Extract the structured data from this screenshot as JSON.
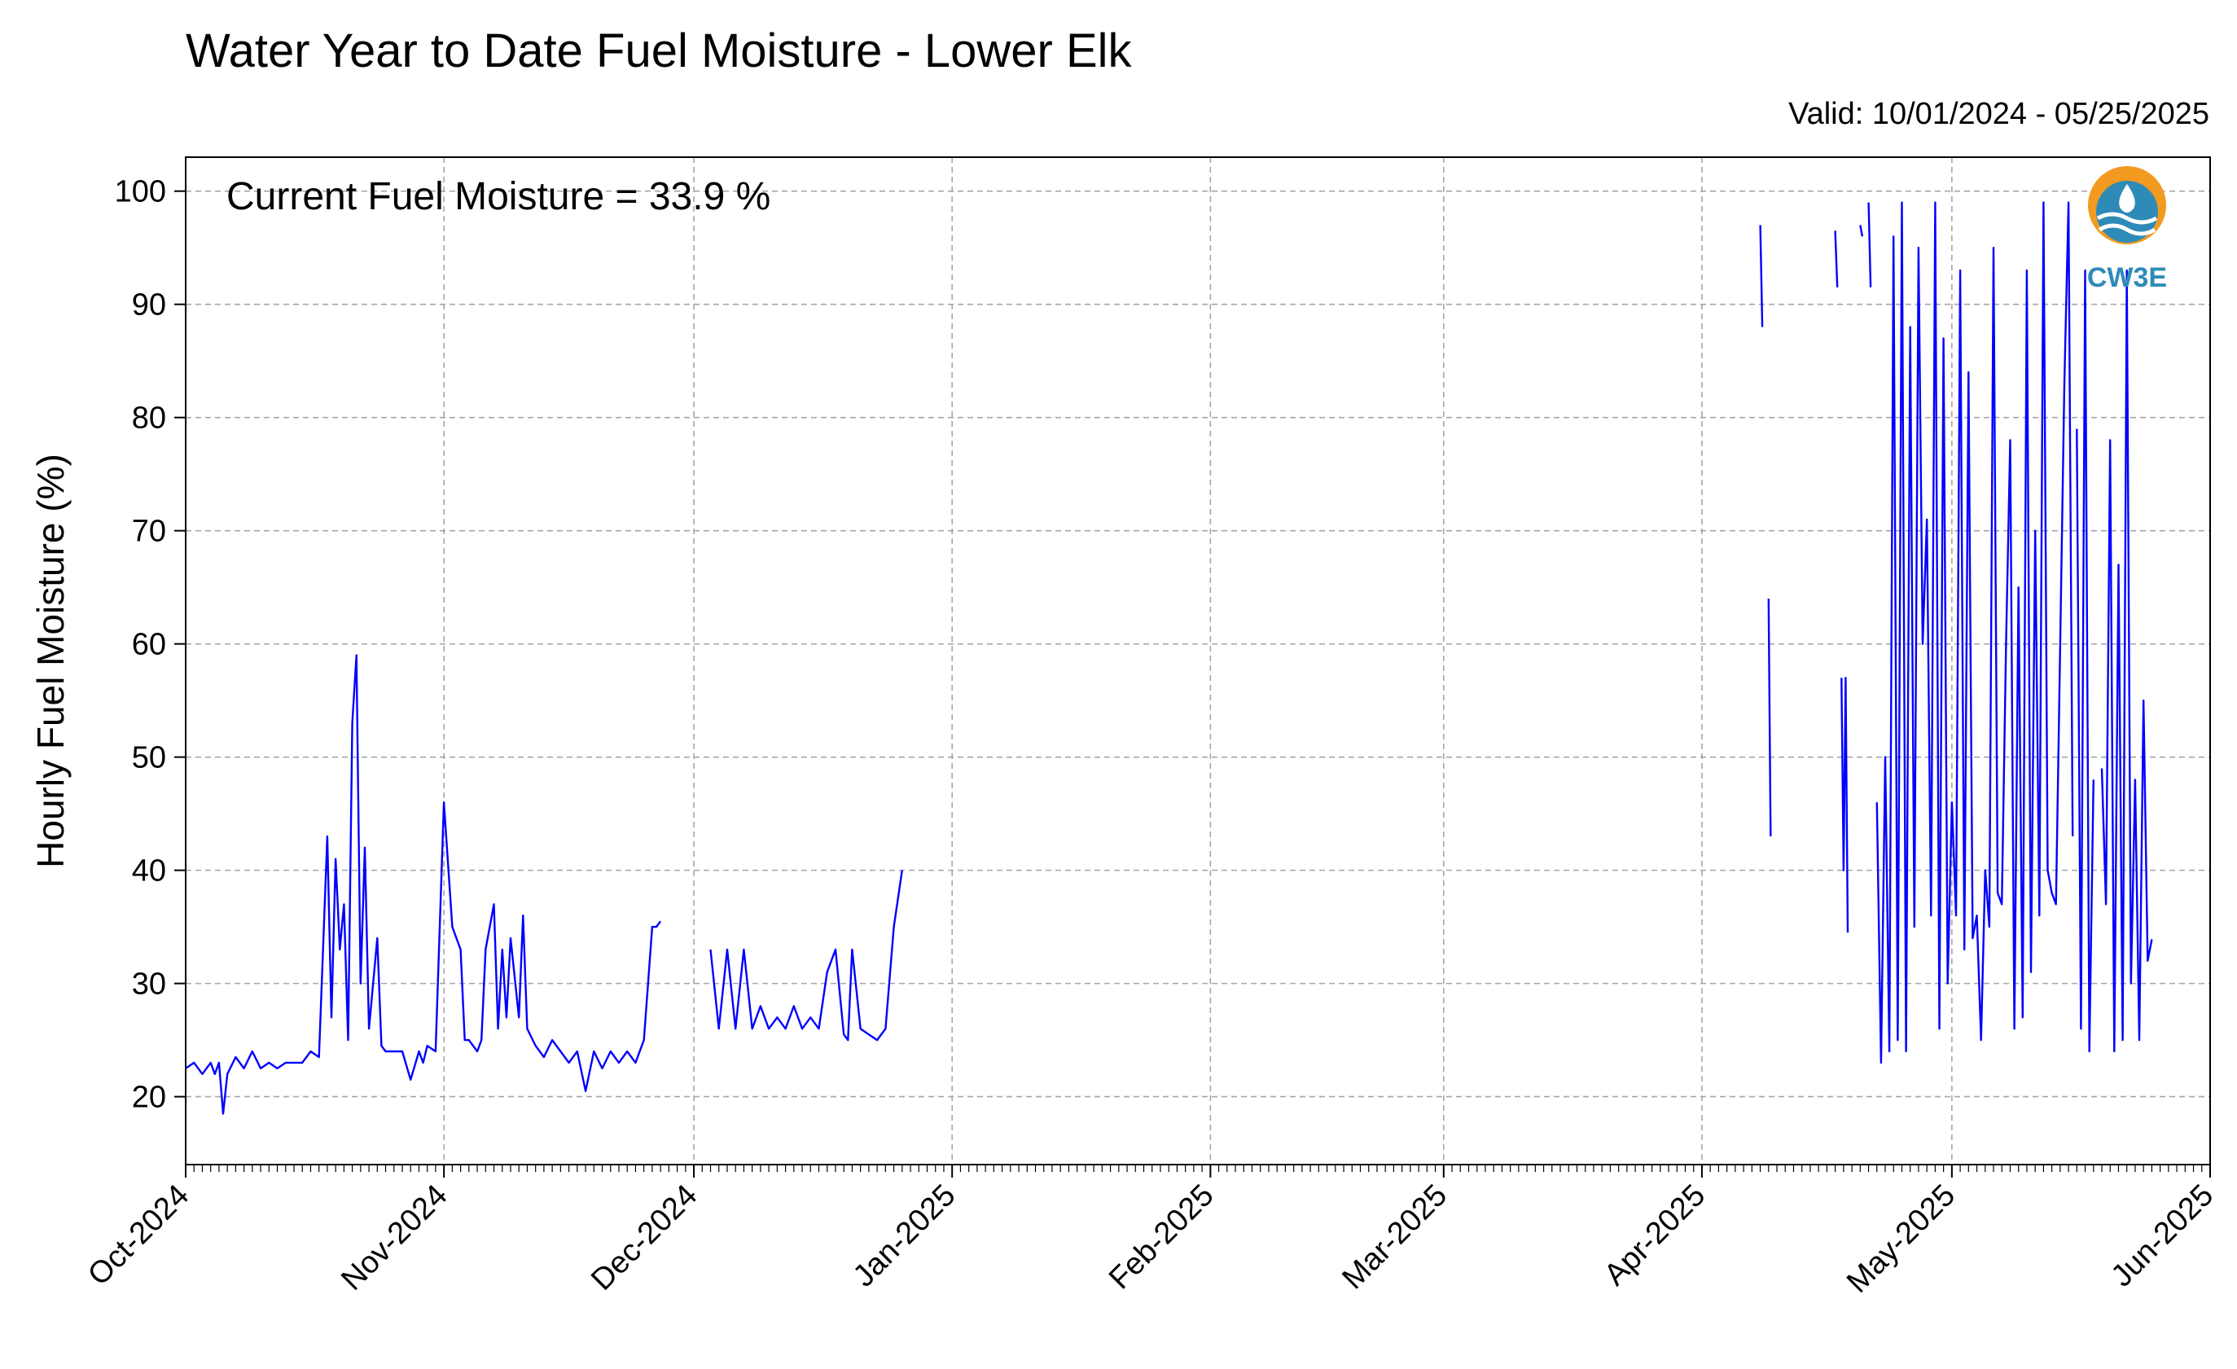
{
  "chart_data": {
    "type": "line",
    "title": "Water Year to Date Fuel Moisture - Lower Elk",
    "valid_range": "Valid: 10/01/2024 - 05/25/2025",
    "ylabel": "Hourly Fuel Moisture (%)",
    "xlabel": "",
    "annotation": "Current Fuel Moisture = 33.9 %",
    "logo_text": "CW3E",
    "xlim": [
      "2024-10-01",
      "2025-06-01"
    ],
    "ylim": [
      14,
      103
    ],
    "x_ticks": [
      "2024-10-01",
      "2024-11-01",
      "2024-12-01",
      "2025-01-01",
      "2025-02-01",
      "2025-03-01",
      "2025-04-01",
      "2025-05-01",
      "2025-06-01"
    ],
    "x_tick_labels": [
      "Oct-2024",
      "Nov-2024",
      "Dec-2024",
      "Jan-2025",
      "Feb-2025",
      "Mar-2025",
      "Apr-2025",
      "May-2025",
      "Jun-2025"
    ],
    "y_ticks": [
      20,
      30,
      40,
      50,
      60,
      70,
      80,
      90,
      100
    ],
    "y_tick_labels": [
      "20",
      "30",
      "40",
      "50",
      "60",
      "70",
      "80",
      "90",
      "100"
    ],
    "grid": true,
    "line_color": "#0000ff",
    "segments": [
      {
        "x": [
          "2024-10-01",
          "2024-10-02",
          "2024-10-03",
          "2024-10-04",
          "2024-10-04T12",
          "2024-10-05",
          "2024-10-05T12",
          "2024-10-06",
          "2024-10-07",
          "2024-10-08",
          "2024-10-09",
          "2024-10-10",
          "2024-10-11",
          "2024-10-12",
          "2024-10-13",
          "2024-10-14",
          "2024-10-15",
          "2024-10-16",
          "2024-10-17",
          "2024-10-18",
          "2024-10-18T12",
          "2024-10-19",
          "2024-10-19T12",
          "2024-10-20",
          "2024-10-20T12",
          "2024-10-21",
          "2024-10-21T12",
          "2024-10-22",
          "2024-10-22T12",
          "2024-10-23",
          "2024-10-24",
          "2024-10-24T12",
          "2024-10-25",
          "2024-10-26",
          "2024-10-27",
          "2024-10-28",
          "2024-10-29",
          "2024-10-29T12",
          "2024-10-30",
          "2024-10-31",
          "2024-11-01",
          "2024-11-02",
          "2024-11-03",
          "2024-11-03T12",
          "2024-11-04",
          "2024-11-05",
          "2024-11-05T12",
          "2024-11-06",
          "2024-11-07",
          "2024-11-07T12",
          "2024-11-08",
          "2024-11-08T12",
          "2024-11-09",
          "2024-11-10",
          "2024-11-10T12",
          "2024-11-11",
          "2024-11-12",
          "2024-11-13",
          "2024-11-14",
          "2024-11-15",
          "2024-11-16",
          "2024-11-17",
          "2024-11-18",
          "2024-11-19",
          "2024-11-20",
          "2024-11-21",
          "2024-11-22",
          "2024-11-23",
          "2024-11-24",
          "2024-11-25",
          "2024-11-26",
          "2024-11-26T12",
          "2024-11-27"
        ],
        "y": [
          22.5,
          23,
          22,
          23,
          22,
          23,
          18.5,
          22,
          23.5,
          22.5,
          24,
          22.5,
          23,
          22.5,
          23,
          23,
          23,
          24,
          23.5,
          43,
          27,
          41,
          33,
          37,
          25,
          53,
          59,
          30,
          42,
          26,
          34,
          24.5,
          24,
          24,
          24,
          21.5,
          24,
          23,
          24.5,
          24,
          46,
          35,
          33,
          25,
          25,
          24,
          25,
          33,
          37,
          26,
          33,
          27,
          34,
          27,
          36,
          26,
          24.5,
          23.5,
          25,
          24,
          23,
          24,
          20.5,
          24,
          22.5,
          24,
          23,
          24,
          23,
          25,
          35,
          35,
          35.5
        ]
      },
      {
        "x": [
          "2024-12-03",
          "2024-12-04",
          "2024-12-05",
          "2024-12-06",
          "2024-12-07",
          "2024-12-08",
          "2024-12-09",
          "2024-12-10",
          "2024-12-11",
          "2024-12-12",
          "2024-12-13",
          "2024-12-14",
          "2024-12-15",
          "2024-12-16",
          "2024-12-17",
          "2024-12-18",
          "2024-12-19",
          "2024-12-19T12",
          "2024-12-20",
          "2024-12-21",
          "2024-12-22",
          "2024-12-23",
          "2024-12-24",
          "2024-12-25",
          "2024-12-26"
        ],
        "y": [
          33,
          26,
          33,
          26,
          33,
          26,
          28,
          26,
          27,
          26,
          28,
          26,
          27,
          26,
          31,
          33,
          25.5,
          25,
          33,
          26,
          25.5,
          25,
          26,
          35,
          40
        ]
      },
      {
        "x": [
          "2025-04-08",
          "2025-04-08T06"
        ],
        "y": [
          97,
          88
        ]
      },
      {
        "x": [
          "2025-04-09",
          "2025-04-09T06"
        ],
        "y": [
          64,
          43
        ]
      },
      {
        "x": [
          "2025-04-17",
          "2025-04-17T06"
        ],
        "y": [
          96.5,
          91.5
        ]
      },
      {
        "x": [
          "2025-04-17T18",
          "2025-04-18",
          "2025-04-18T06",
          "2025-04-18T12"
        ],
        "y": [
          57,
          40,
          57,
          34.5
        ]
      },
      {
        "x": [
          "2025-04-20",
          "2025-04-20T06"
        ],
        "y": [
          97,
          96
        ]
      },
      {
        "x": [
          "2025-04-21",
          "2025-04-21T06"
        ],
        "y": [
          99,
          91.5
        ]
      },
      {
        "x": [
          "2025-04-22",
          "2025-04-22T12",
          "2025-04-23",
          "2025-04-23T12",
          "2025-04-24",
          "2025-04-24T12",
          "2025-04-25",
          "2025-04-25T12",
          "2025-04-26",
          "2025-04-26T12",
          "2025-04-27",
          "2025-04-27T12",
          "2025-04-28",
          "2025-04-28T12",
          "2025-04-29",
          "2025-04-29T12",
          "2025-04-30",
          "2025-04-30T12",
          "2025-05-01",
          "2025-05-01T12",
          "2025-05-02",
          "2025-05-02T12",
          "2025-05-03",
          "2025-05-03T12",
          "2025-05-04",
          "2025-05-04T12",
          "2025-05-05",
          "2025-05-05T12",
          "2025-05-06",
          "2025-05-06T12",
          "2025-05-07",
          "2025-05-07T12",
          "2025-05-08",
          "2025-05-08T12",
          "2025-05-09",
          "2025-05-09T12",
          "2025-05-10",
          "2025-05-10T12",
          "2025-05-11",
          "2025-05-11T12",
          "2025-05-12",
          "2025-05-12T12",
          "2025-05-13",
          "2025-05-13T12",
          "2025-05-14",
          "2025-05-14T12",
          "2025-05-15",
          "2025-05-15T12"
        ],
        "y": [
          46,
          23,
          50,
          24,
          96,
          25,
          99,
          24,
          88,
          35,
          95,
          60,
          71,
          36,
          99,
          26,
          87,
          30,
          46,
          36,
          93,
          33,
          84,
          34,
          36,
          25,
          40,
          35,
          95,
          38,
          37,
          60,
          78,
          26,
          65,
          27,
          93,
          31,
          70,
          36,
          99,
          40,
          38,
          37,
          60,
          83,
          99,
          43
        ]
      },
      {
        "x": [
          "2025-05-16",
          "2025-05-16T12",
          "2025-05-17",
          "2025-05-17T12",
          "2025-05-18"
        ],
        "y": [
          79,
          26,
          93,
          24,
          48
        ]
      },
      {
        "x": [
          "2025-05-19",
          "2025-05-19T12",
          "2025-05-20",
          "2025-05-20T12",
          "2025-05-21",
          "2025-05-21T12",
          "2025-05-22",
          "2025-05-22T12",
          "2025-05-23",
          "2025-05-23T12",
          "2025-05-24",
          "2025-05-24T12",
          "2025-05-25"
        ],
        "y": [
          49,
          37,
          78,
          24,
          67,
          25,
          93,
          30,
          48,
          25,
          55,
          32,
          33.9
        ]
      }
    ]
  }
}
